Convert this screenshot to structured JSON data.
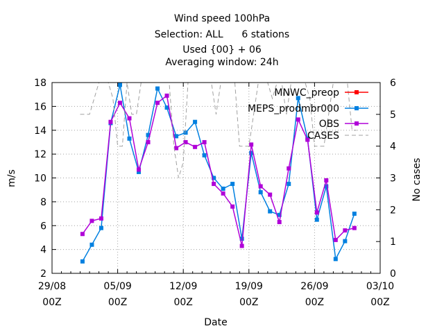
{
  "chart_data": {
    "type": "line",
    "title_lines": [
      "Wind speed 100hPa",
      "Selection: ALL      6 stations",
      "Used {00} + 06",
      "Averaging window: 24h"
    ],
    "xlabel": "Date",
    "ylabel": "m/s",
    "y2label": "No cases",
    "ylim": [
      2,
      18
    ],
    "y_ticks": [
      2,
      4,
      6,
      8,
      10,
      12,
      14,
      16,
      18
    ],
    "y2lim": [
      0,
      6
    ],
    "y2_ticks": [
      0,
      1,
      2,
      3,
      4,
      5,
      6
    ],
    "xlim_days": [
      0,
      35
    ],
    "x_ticks": [
      {
        "day": 0,
        "date": "29/08",
        "hour": "00Z"
      },
      {
        "day": 7,
        "date": "05/09",
        "hour": "00Z"
      },
      {
        "day": 14,
        "date": "12/09",
        "hour": "00Z"
      },
      {
        "day": 21,
        "date": "19/09",
        "hour": "00Z"
      },
      {
        "day": 28,
        "date": "26/09",
        "hour": "00Z"
      },
      {
        "day": 35,
        "date": "03/10",
        "hour": "00Z"
      }
    ],
    "grid": true,
    "legend_position": "top-right",
    "series": [
      {
        "name": "MNWC_preop",
        "color": "#ff0000",
        "marker": "square",
        "axis": "y",
        "x": [],
        "y": []
      },
      {
        "name": "MEPS_prodmbr000",
        "color": "#0080e0",
        "marker": "square",
        "axis": "y",
        "x": [
          3.25,
          4.25,
          5.25,
          6.25,
          7.25,
          8.25,
          9.25,
          10.25,
          11.25,
          12.25,
          13.25,
          14.25,
          15.25,
          16.25,
          17.25,
          18.25,
          19.25,
          20.25,
          21.25,
          22.25,
          23.25,
          24.25,
          25.25,
          26.25,
          27.25,
          28.25,
          29.25,
          30.25,
          31.25,
          32.25
        ],
        "y": [
          3.0,
          4.4,
          5.8,
          14.6,
          17.8,
          13.3,
          10.5,
          13.6,
          17.5,
          15.9,
          13.5,
          13.8,
          14.7,
          11.9,
          10.0,
          9.1,
          9.5,
          4.9,
          12.1,
          8.8,
          7.2,
          6.9,
          9.5,
          16.7,
          13.3,
          6.5,
          9.3,
          3.2,
          4.7,
          7.0
        ]
      },
      {
        "name": "OBS",
        "color": "#b000d8",
        "marker": "square",
        "axis": "y",
        "x": [
          3.25,
          4.25,
          5.25,
          6.25,
          7.25,
          8.25,
          9.25,
          10.25,
          11.25,
          12.25,
          13.25,
          14.25,
          15.25,
          16.25,
          17.25,
          18.25,
          19.25,
          20.25,
          21.25,
          22.25,
          23.25,
          24.25,
          25.25,
          26.25,
          27.25,
          28.25,
          29.25,
          30.25,
          31.25,
          32.25
        ],
        "y": [
          5.3,
          6.4,
          6.6,
          14.7,
          16.3,
          15.0,
          10.7,
          13.0,
          16.3,
          16.9,
          12.5,
          13.0,
          12.6,
          13.0,
          9.5,
          8.7,
          7.6,
          4.3,
          12.8,
          9.3,
          8.6,
          6.3,
          10.8,
          14.9,
          13.2,
          7.1,
          9.8,
          4.8,
          5.6,
          5.8
        ]
      },
      {
        "name": "CASES",
        "color": "#a0a0a0",
        "marker": "none",
        "axis": "y2",
        "x": [
          3.0,
          3.5,
          4.0,
          4.5,
          5.0,
          5.5,
          6.0,
          6.5,
          7.0,
          7.5,
          8.0,
          8.5,
          9.0,
          9.5,
          10.0,
          10.5,
          11.0,
          11.5,
          12.0,
          12.5,
          13.0,
          13.5,
          14.0,
          14.5,
          15.0,
          15.5,
          16.0,
          16.5,
          17.0,
          17.5,
          18.0,
          18.5,
          19.0,
          19.5,
          20.0,
          20.5,
          21.0,
          21.5,
          22.0,
          22.5,
          23.0,
          23.5,
          24.0,
          24.5,
          25.0,
          25.5,
          26.0,
          26.5,
          27.0,
          27.5,
          28.0,
          28.5,
          29.0,
          29.5,
          30.0,
          30.5,
          31.0,
          31.5,
          32.0,
          32.5
        ],
        "y": [
          5.0,
          5.0,
          5.0,
          5.5,
          6.0,
          6.0,
          6.0,
          5.5,
          4.0,
          4.0,
          6.0,
          5.0,
          5.0,
          6.0,
          6.0,
          6.0,
          6.0,
          6.0,
          6.0,
          6.0,
          4.0,
          3.0,
          3.5,
          6.0,
          6.0,
          6.0,
          6.0,
          6.0,
          6.0,
          5.0,
          6.0,
          6.0,
          6.0,
          6.0,
          4.0,
          4.0,
          4.0,
          5.0,
          6.0,
          6.0,
          6.0,
          5.5,
          6.0,
          6.0,
          5.0,
          6.0,
          6.0,
          6.0,
          6.0,
          5.5,
          4.0,
          4.0,
          4.0,
          5.0,
          6.0,
          6.0,
          6.0,
          6.0,
          4.5,
          4.5
        ]
      }
    ]
  }
}
